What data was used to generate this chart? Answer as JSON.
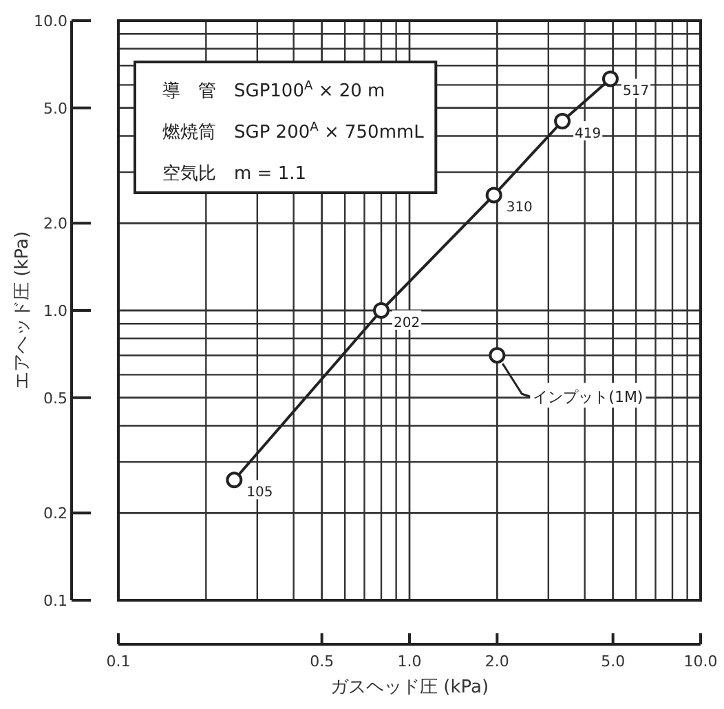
{
  "chart_data": {
    "type": "line",
    "xlabel": "ガスヘッド圧 (kPa)",
    "ylabel": "エアヘッド圧 (kPa)",
    "log": "xy",
    "grid": true,
    "marker": "circle",
    "line_style": "solid",
    "xlim": [
      0.1,
      10
    ],
    "ylim": [
      0.1,
      10
    ],
    "xticks": [
      {
        "value": 0.1,
        "label": "0.1"
      },
      {
        "value": 0.5,
        "label": "0.5"
      },
      {
        "value": 1,
        "label": "1.0"
      },
      {
        "value": 2,
        "label": "2.0"
      },
      {
        "value": 5,
        "label": "5.0"
      },
      {
        "value": 10,
        "label": "10.0"
      }
    ],
    "yticks": [
      {
        "value": 0.1,
        "label": "0.1"
      },
      {
        "value": 0.2,
        "label": "0.2"
      },
      {
        "value": 0.5,
        "label": "0.5"
      },
      {
        "value": 1,
        "label": "1.0"
      },
      {
        "value": 2,
        "label": "2.0"
      },
      {
        "value": 5,
        "label": "5.0"
      },
      {
        "value": 10,
        "label": "10.0"
      }
    ],
    "series": [
      {
        "type": "line",
        "color": "#222222",
        "x": [
          0.25,
          0.8,
          1.95,
          3.35,
          4.9
        ],
        "values": [
          0.26,
          1.0,
          2.5,
          4.5,
          6.3
        ]
      },
      {
        "type": "scatter",
        "color": "#222222",
        "x": [
          2.0
        ],
        "values": [
          0.7
        ]
      }
    ],
    "annotations": [
      "導　管　SGP100$^{A}$ × 20 m",
      "燃焼筒　SGP 200$^{A}$ × 750mmL",
      "空気比　m = 1.1",
      {
        "text": "105",
        "x": 0.25,
        "y": 0.26
      },
      {
        "text": "202",
        "x": 0.8,
        "y": 1.0
      },
      {
        "text": "310",
        "x": 1.95,
        "y": 2.5
      },
      {
        "text": "419",
        "x": 3.35,
        "y": 4.5
      },
      {
        "text": "517",
        "x": 4.9,
        "y": 6.3
      },
      {
        "text": "インプット(1M)",
        "x": 2.0,
        "y": 0.7
      }
    ]
  }
}
